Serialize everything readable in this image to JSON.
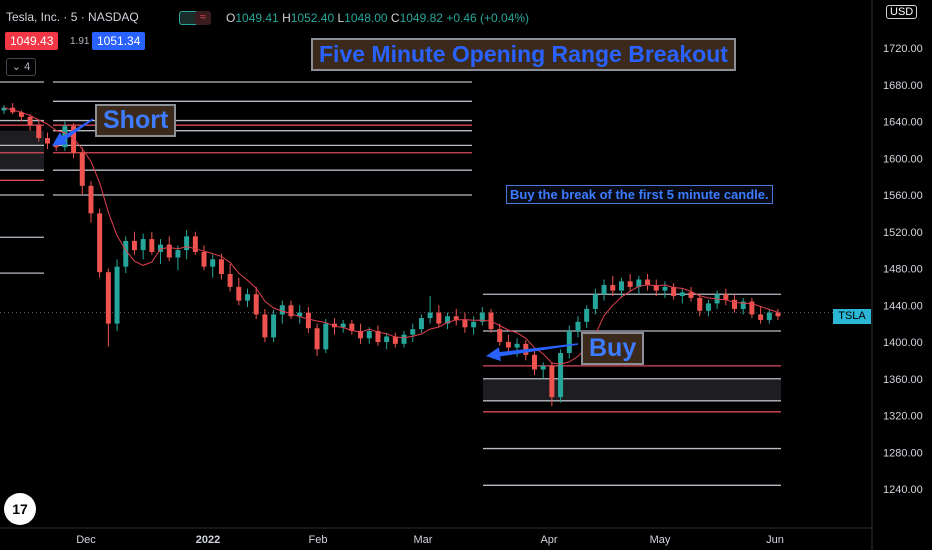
{
  "header": {
    "symbol": "Tesla, Inc. · 5 · NASDAQ",
    "ohlc": [
      {
        "key": "O",
        "value": "1049.41"
      },
      {
        "key": "H",
        "value": "1052.40"
      },
      {
        "key": "L",
        "value": "1048.00"
      },
      {
        "key": "C",
        "value": "1049.82"
      },
      {
        "key": "",
        "value": "+0.46 (+0.04%)"
      }
    ],
    "bid": "1049.43",
    "spread": "1.91",
    "ask": "1051.34",
    "collapse_label": "4",
    "currency": "USD"
  },
  "annotations": {
    "title": "Five Minute Opening Range Breakout",
    "note": "Buy the break of the first 5 minute candle.",
    "short_label": "Short",
    "buy_label": "Buy",
    "ticker_tag": "TSLA"
  },
  "colors": {
    "up": "#26a69a",
    "down": "#ef5350",
    "ma": "#e04050",
    "level_white": "#b8bcc4",
    "level_red": "#d94a5a",
    "arrow": "#2962ff"
  },
  "chart_data": {
    "type": "candlestick",
    "y_axis": {
      "min": 1220,
      "max": 1750,
      "ticks": [
        "1720.00",
        "1680.00",
        "1640.00",
        "1600.00",
        "1560.00",
        "1520.00",
        "1480.00",
        "1440.00",
        "1400.00",
        "1360.00",
        "1320.00",
        "1280.00",
        "1240.00"
      ]
    },
    "x_axis": {
      "ticks": [
        "Dec",
        "2022",
        "Feb",
        "Mar",
        "Apr",
        "May",
        "Jun"
      ]
    },
    "last_price": 1432,
    "levels_left": {
      "white": [
        1683,
        1662,
        1641,
        1630,
        1614,
        1587,
        1560
      ],
      "red": [
        1636,
        1606
      ]
    },
    "levels_right": {
      "white": [
        1452,
        1412,
        1360,
        1336,
        1284,
        1244
      ],
      "red": [
        1374,
        1324
      ]
    },
    "candles": [
      [
        1652,
        1658,
        1648,
        1655
      ],
      [
        1655,
        1660,
        1648,
        1650
      ],
      [
        1650,
        1652,
        1640,
        1645
      ],
      [
        1645,
        1648,
        1630,
        1636
      ],
      [
        1636,
        1640,
        1618,
        1622
      ],
      [
        1622,
        1628,
        1610,
        1616
      ],
      [
        1616,
        1620,
        1608,
        1612
      ],
      [
        1612,
        1640,
        1608,
        1635
      ],
      [
        1635,
        1638,
        1600,
        1606
      ],
      [
        1606,
        1612,
        1560,
        1570
      ],
      [
        1570,
        1575,
        1530,
        1540
      ],
      [
        1540,
        1545,
        1470,
        1476
      ],
      [
        1476,
        1480,
        1395,
        1420
      ],
      [
        1420,
        1490,
        1412,
        1482
      ],
      [
        1482,
        1515,
        1475,
        1510
      ],
      [
        1510,
        1520,
        1495,
        1500
      ],
      [
        1500,
        1518,
        1490,
        1512
      ],
      [
        1512,
        1520,
        1495,
        1498
      ],
      [
        1498,
        1512,
        1485,
        1506
      ],
      [
        1506,
        1515,
        1488,
        1492
      ],
      [
        1492,
        1505,
        1478,
        1500
      ],
      [
        1500,
        1522,
        1490,
        1515
      ],
      [
        1515,
        1520,
        1495,
        1498
      ],
      [
        1498,
        1505,
        1478,
        1482
      ],
      [
        1482,
        1495,
        1470,
        1490
      ],
      [
        1490,
        1496,
        1468,
        1474
      ],
      [
        1474,
        1485,
        1455,
        1460
      ],
      [
        1460,
        1470,
        1440,
        1445
      ],
      [
        1445,
        1458,
        1438,
        1452
      ],
      [
        1452,
        1460,
        1425,
        1430
      ],
      [
        1430,
        1436,
        1400,
        1405
      ],
      [
        1405,
        1435,
        1400,
        1430
      ],
      [
        1430,
        1445,
        1420,
        1440
      ],
      [
        1440,
        1445,
        1425,
        1428
      ],
      [
        1428,
        1440,
        1420,
        1432
      ],
      [
        1432,
        1438,
        1410,
        1415
      ],
      [
        1415,
        1420,
        1385,
        1392
      ],
      [
        1392,
        1425,
        1388,
        1420
      ],
      [
        1420,
        1426,
        1408,
        1416
      ],
      [
        1416,
        1424,
        1410,
        1420
      ],
      [
        1420,
        1424,
        1408,
        1412
      ],
      [
        1412,
        1420,
        1398,
        1404
      ],
      [
        1404,
        1416,
        1398,
        1412
      ],
      [
        1412,
        1418,
        1396,
        1400
      ],
      [
        1400,
        1410,
        1392,
        1406
      ],
      [
        1406,
        1410,
        1394,
        1398
      ],
      [
        1398,
        1412,
        1394,
        1408
      ],
      [
        1408,
        1420,
        1400,
        1414
      ],
      [
        1414,
        1430,
        1410,
        1426
      ],
      [
        1426,
        1450,
        1420,
        1432
      ],
      [
        1432,
        1440,
        1416,
        1420
      ],
      [
        1420,
        1432,
        1414,
        1428
      ],
      [
        1428,
        1436,
        1418,
        1424
      ],
      [
        1424,
        1432,
        1410,
        1416
      ],
      [
        1416,
        1428,
        1408,
        1422
      ],
      [
        1422,
        1438,
        1418,
        1432
      ],
      [
        1432,
        1436,
        1410,
        1414
      ],
      [
        1414,
        1420,
        1396,
        1400
      ],
      [
        1400,
        1408,
        1388,
        1394
      ],
      [
        1394,
        1404,
        1384,
        1398
      ],
      [
        1398,
        1402,
        1380,
        1386
      ],
      [
        1386,
        1392,
        1364,
        1370
      ],
      [
        1370,
        1378,
        1360,
        1374
      ],
      [
        1374,
        1378,
        1330,
        1340
      ],
      [
        1340,
        1392,
        1334,
        1388
      ],
      [
        1388,
        1418,
        1382,
        1412
      ],
      [
        1412,
        1428,
        1405,
        1422
      ],
      [
        1422,
        1440,
        1415,
        1436
      ],
      [
        1436,
        1458,
        1430,
        1452
      ],
      [
        1452,
        1468,
        1445,
        1462
      ],
      [
        1462,
        1472,
        1450,
        1456
      ],
      [
        1456,
        1470,
        1448,
        1466
      ],
      [
        1466,
        1474,
        1455,
        1460
      ],
      [
        1460,
        1472,
        1452,
        1468
      ],
      [
        1468,
        1474,
        1456,
        1462
      ],
      [
        1462,
        1468,
        1450,
        1456
      ],
      [
        1456,
        1466,
        1448,
        1460
      ],
      [
        1460,
        1464,
        1446,
        1450
      ],
      [
        1450,
        1458,
        1442,
        1454
      ],
      [
        1454,
        1460,
        1444,
        1448
      ],
      [
        1448,
        1452,
        1428,
        1434
      ],
      [
        1434,
        1446,
        1428,
        1442
      ],
      [
        1442,
        1456,
        1436,
        1452
      ],
      [
        1452,
        1458,
        1440,
        1446
      ],
      [
        1446,
        1452,
        1432,
        1436
      ],
      [
        1436,
        1448,
        1430,
        1444
      ],
      [
        1444,
        1448,
        1426,
        1430
      ],
      [
        1430,
        1438,
        1420,
        1424
      ],
      [
        1424,
        1436,
        1420,
        1432
      ],
      [
        1432,
        1436,
        1424,
        1428
      ]
    ]
  }
}
